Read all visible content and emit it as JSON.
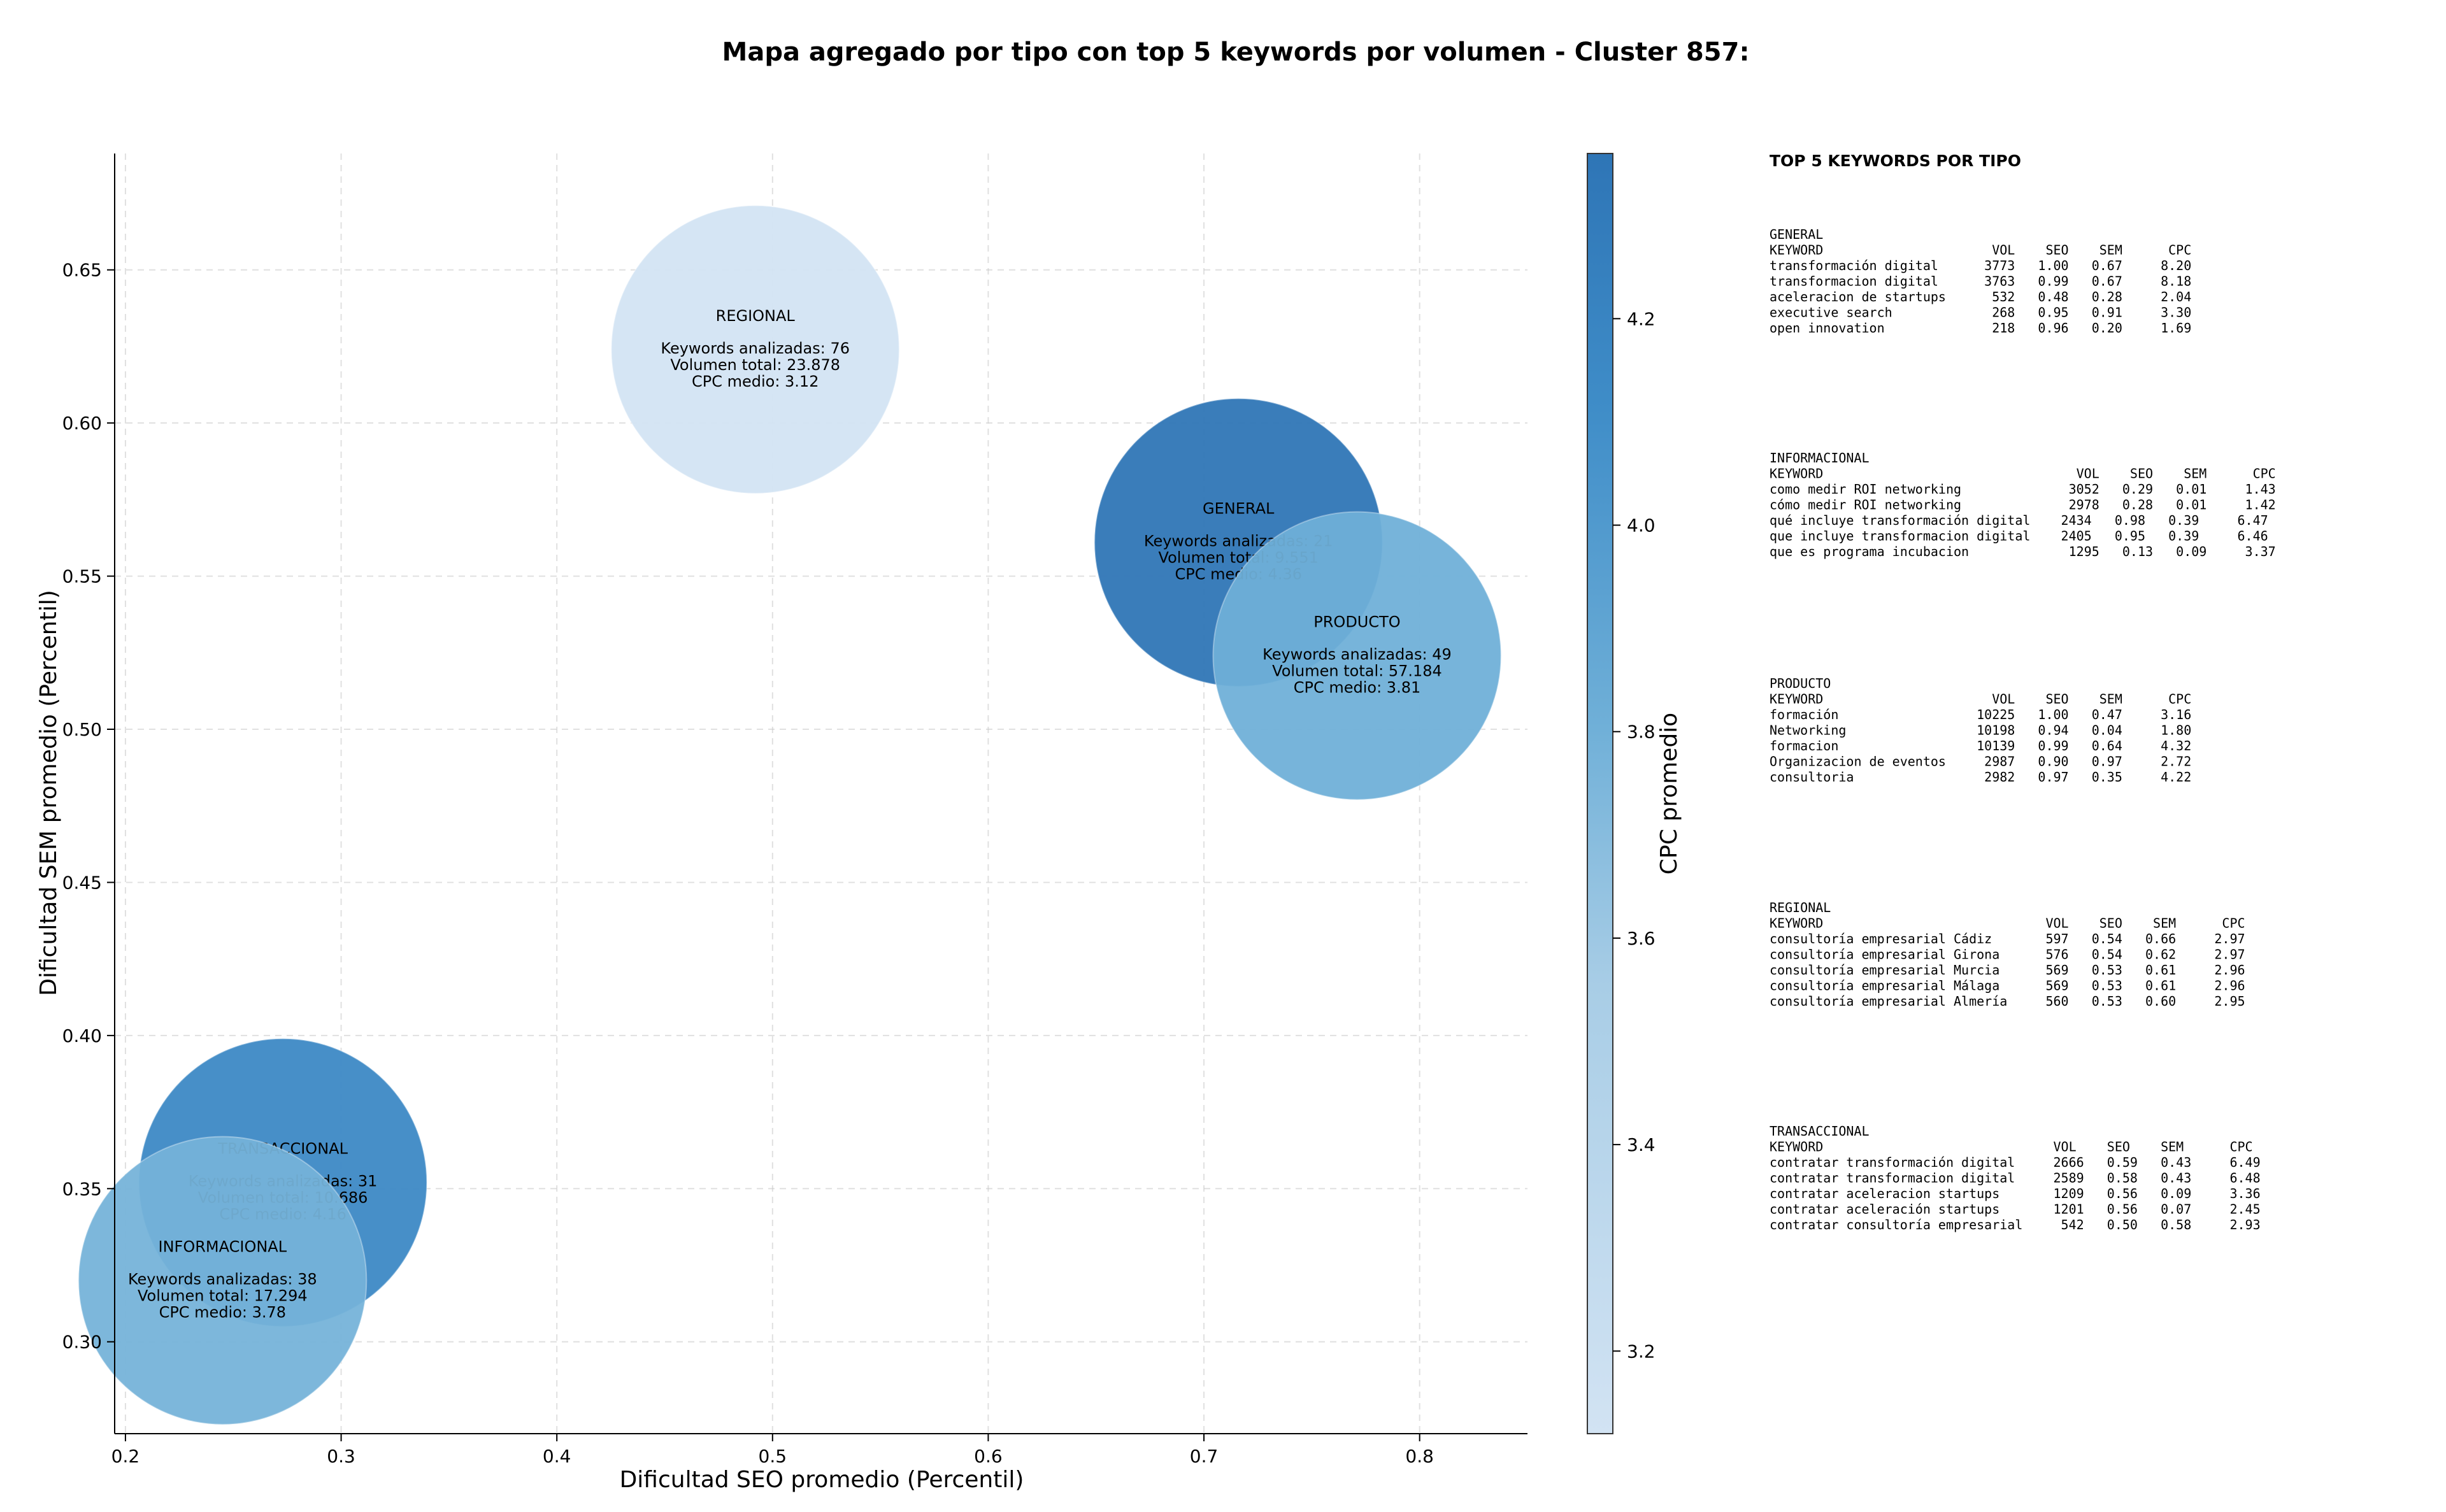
{
  "chart_data": {
    "type": "scatter",
    "title": "Mapa agregado por tipo con top 5 keywords por volumen - Cluster 857:",
    "xlabel": "Dificultad SEO promedio (Percentil)",
    "ylabel": "Dificultad SEM promedio (Percentil)",
    "xlim": [
      0.195,
      0.85
    ],
    "ylim": [
      0.27,
      0.688
    ],
    "xticks": [
      "0.2",
      "0.3",
      "0.4",
      "0.5",
      "0.6",
      "0.7",
      "0.8"
    ],
    "yticks": [
      "0.30",
      "0.35",
      "0.40",
      "0.45",
      "0.50",
      "0.55",
      "0.60",
      "0.65"
    ],
    "grid": true,
    "colorbar": {
      "label": "CPC promedio",
      "range": [
        3.12,
        4.36
      ],
      "ticks": [
        "3.2",
        "3.4",
        "3.6",
        "3.8",
        "4.0",
        "4.2"
      ],
      "colors": [
        "#d2e3f3",
        "#2e75b6"
      ]
    },
    "series": [
      {
        "name": "REGIONAL",
        "x": 0.492,
        "y": 0.624,
        "keywords_label": "Keywords analizadas: 76",
        "volume_label": "Volumen total: 23.878",
        "cpc_label": "CPC medio: 3.12",
        "keywords": 76,
        "volume": 23878,
        "cpc": 3.12
      },
      {
        "name": "GENERAL",
        "x": 0.716,
        "y": 0.561,
        "keywords_label": "Keywords analizadas: 21",
        "volume_label": "Volumen total: 9.551",
        "cpc_label": "CPC medio: 4.36",
        "keywords": 21,
        "volume": 9551,
        "cpc": 4.36
      },
      {
        "name": "PRODUCTO",
        "x": 0.771,
        "y": 0.524,
        "keywords_label": "Keywords analizadas: 49",
        "volume_label": "Volumen total: 57.184",
        "cpc_label": "CPC medio: 3.81",
        "keywords": 49,
        "volume": 57184,
        "cpc": 3.81
      },
      {
        "name": "TRANSACCIONAL",
        "x": 0.273,
        "y": 0.352,
        "keywords_label": "Keywords analizadas: 31",
        "volume_label": "Volumen total: 10.686",
        "cpc_label": "CPC medio: 4.16",
        "keywords": 31,
        "volume": 10686,
        "cpc": 4.16
      },
      {
        "name": "INFORMACIONAL",
        "x": 0.245,
        "y": 0.32,
        "keywords_label": "Keywords analizadas: 38",
        "volume_label": "Volumen total: 17.294",
        "cpc_label": "CPC medio: 3.78",
        "keywords": 38,
        "volume": 17294,
        "cpc": 3.78
      }
    ]
  },
  "side_panel": {
    "title": "TOP 5 KEYWORDS POR TIPO",
    "sections": [
      {
        "name": "GENERAL",
        "header": "KEYWORD                      VOL    SEO    SEM      CPC",
        "rows": [
          "transformación digital      3773   1.00   0.67     8.20",
          "transformacion digital      3763   0.99   0.67     8.18",
          "aceleracion de startups      532   0.48   0.28     2.04",
          "executive search             268   0.95   0.91     3.30",
          "open innovation              218   0.96   0.20     1.69"
        ]
      },
      {
        "name": "INFORMACIONAL",
        "header": "KEYWORD                                 VOL    SEO    SEM      CPC",
        "rows": [
          "como medir ROI networking              3052   0.29   0.01     1.43",
          "cómo medir ROI networking              2978   0.28   0.01     1.42",
          "qué incluye transformación digital    2434   0.98   0.39     6.47",
          "que incluye transformacion digital    2405   0.95   0.39     6.46",
          "que es programa incubacion             1295   0.13   0.09     3.37"
        ]
      },
      {
        "name": "PRODUCTO",
        "header": "KEYWORD                      VOL    SEO    SEM      CPC",
        "rows": [
          "formación                  10225   1.00   0.47     3.16",
          "Networking                 10198   0.94   0.04     1.80",
          "formacion                  10139   0.99   0.64     4.32",
          "Organizacion de eventos     2987   0.90   0.97     2.72",
          "consultoria                 2982   0.97   0.35     4.22"
        ]
      },
      {
        "name": "REGIONAL",
        "header": "KEYWORD                             VOL    SEO    SEM      CPC",
        "rows": [
          "consultoría empresarial Cádiz       597   0.54   0.66     2.97",
          "consultoría empresarial Girona      576   0.54   0.62     2.97",
          "consultoría empresarial Murcia      569   0.53   0.61     2.96",
          "consultoría empresarial Málaga      569   0.53   0.61     2.96",
          "consultoría empresarial Almería     560   0.53   0.60     2.95"
        ]
      },
      {
        "name": "TRANSACCIONAL",
        "header": "KEYWORD                              VOL    SEO    SEM      CPC",
        "rows": [
          "contratar transformación digital     2666   0.59   0.43     6.49",
          "contratar transformacion digital     2589   0.58   0.43     6.48",
          "contratar aceleracion startups       1209   0.56   0.09     3.36",
          "contratar aceleración startups       1201   0.56   0.07     2.45",
          "contratar consultoría empresarial     542   0.50   0.58     2.93"
        ]
      }
    ]
  }
}
